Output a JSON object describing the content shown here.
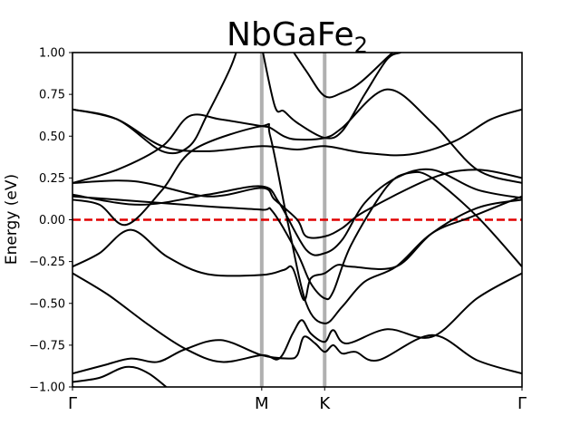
{
  "chart_data": {
    "type": "line",
    "title": "NbGaFe",
    "title_subscript": "2",
    "ylabel": "Energy (eV)",
    "xlabel": "",
    "x_range": [
      0,
      1
    ],
    "ylim": [
      -1.0,
      1.0
    ],
    "yticks": [
      -1.0,
      -0.75,
      -0.5,
      -0.25,
      0.0,
      0.25,
      0.5,
      0.75,
      1.0
    ],
    "ytick_labels": [
      "−1.00",
      "−0.75",
      "−0.50",
      "−0.25",
      "0.00",
      "0.25",
      "0.50",
      "0.75",
      "1.00"
    ],
    "high_symmetry_points": [
      {
        "label": "Γ",
        "x": 0.0
      },
      {
        "label": "M",
        "x": 0.421
      },
      {
        "label": "K",
        "x": 0.561
      },
      {
        "label": "Γ",
        "x": 1.0
      }
    ],
    "fermi_level": 0.0,
    "colors": {
      "bands": "#000000",
      "fermi": "#e00000",
      "kpath": "#b0b0b0"
    },
    "grid": false,
    "series": [
      {
        "points": [
          [
            0.0,
            -1.0
          ],
          [
            0.1,
            -1.05
          ]
        ]
      },
      {
        "points": [
          [
            0.0,
            -0.97
          ],
          [
            0.06,
            -0.945
          ],
          [
            0.12,
            -0.88
          ],
          [
            0.17,
            -0.92
          ],
          [
            0.23,
            -1.05
          ]
        ]
      },
      {
        "points": [
          [
            0.0,
            -0.92
          ],
          [
            0.07,
            -0.87
          ],
          [
            0.13,
            -0.83
          ],
          [
            0.19,
            -0.85
          ],
          [
            0.25,
            -0.775
          ],
          [
            0.33,
            -0.72
          ],
          [
            0.421,
            -0.81
          ],
          [
            0.48,
            -0.83
          ],
          [
            0.5,
            -0.81
          ],
          [
            0.515,
            -0.7
          ],
          [
            0.54,
            -0.74
          ],
          [
            0.561,
            -0.79
          ],
          [
            0.58,
            -0.75
          ],
          [
            0.6,
            -0.8
          ],
          [
            0.63,
            -0.79
          ],
          [
            0.68,
            -0.84
          ],
          [
            0.8,
            -0.69
          ],
          [
            0.9,
            -0.84
          ],
          [
            1.0,
            -0.92
          ]
        ]
      },
      {
        "points": [
          [
            0.0,
            -0.32
          ],
          [
            0.08,
            -0.45
          ],
          [
            0.17,
            -0.63
          ],
          [
            0.25,
            -0.77
          ],
          [
            0.33,
            -0.85
          ],
          [
            0.421,
            -0.81
          ],
          [
            0.46,
            -0.83
          ],
          [
            0.49,
            -0.68
          ],
          [
            0.51,
            -0.6
          ],
          [
            0.53,
            -0.68
          ],
          [
            0.561,
            -0.73
          ],
          [
            0.58,
            -0.66
          ],
          [
            0.61,
            -0.74
          ],
          [
            0.7,
            -0.655
          ],
          [
            0.8,
            -0.7
          ],
          [
            0.9,
            -0.47
          ],
          [
            1.0,
            -0.32
          ]
        ]
      },
      {
        "points": [
          [
            0.0,
            -0.28
          ],
          [
            0.06,
            -0.2
          ],
          [
            0.13,
            -0.06
          ],
          [
            0.21,
            -0.22
          ],
          [
            0.3,
            -0.325
          ],
          [
            0.421,
            -0.33
          ],
          [
            0.47,
            -0.3
          ],
          [
            0.49,
            -0.29
          ],
          [
            0.515,
            -0.48
          ],
          [
            0.53,
            -0.35
          ],
          [
            0.561,
            -0.32
          ],
          [
            0.59,
            -0.27
          ],
          [
            0.62,
            -0.28
          ],
          [
            0.72,
            -0.28
          ],
          [
            0.8,
            -0.08
          ],
          [
            0.9,
            0.07
          ],
          [
            1.0,
            0.12
          ]
        ]
      },
      {
        "points": [
          [
            0.0,
            0.12
          ],
          [
            0.06,
            0.09
          ],
          [
            0.12,
            -0.03
          ],
          [
            0.2,
            0.18
          ],
          [
            0.27,
            0.42
          ],
          [
            0.421,
            0.56
          ],
          [
            0.44,
            0.5
          ],
          [
            0.48,
            -0.03
          ],
          [
            0.52,
            -0.5
          ],
          [
            0.561,
            -0.62
          ],
          [
            0.6,
            -0.52
          ],
          [
            0.65,
            -0.37
          ],
          [
            0.72,
            -0.28
          ],
          [
            0.8,
            -0.08
          ],
          [
            0.89,
            0.02
          ],
          [
            1.0,
            0.14
          ]
        ]
      },
      {
        "points": [
          [
            0.0,
            0.14
          ],
          [
            0.15,
            0.11
          ],
          [
            0.3,
            0.08
          ],
          [
            0.421,
            0.06
          ],
          [
            0.445,
            0.05
          ],
          [
            0.5,
            -0.2
          ],
          [
            0.53,
            -0.38
          ],
          [
            0.561,
            -0.47
          ],
          [
            0.58,
            -0.43
          ],
          [
            0.62,
            -0.15
          ],
          [
            0.7,
            0.2
          ],
          [
            0.75,
            0.28
          ],
          [
            0.8,
            0.25
          ],
          [
            0.9,
            0.02
          ],
          [
            1.0,
            -0.28
          ]
        ]
      },
      {
        "points": [
          [
            0.0,
            0.15
          ],
          [
            0.15,
            0.09
          ],
          [
            0.3,
            0.15
          ],
          [
            0.421,
            0.2
          ],
          [
            0.46,
            0.1
          ],
          [
            0.52,
            -0.18
          ],
          [
            0.561,
            -0.2
          ],
          [
            0.6,
            -0.12
          ],
          [
            0.65,
            0.1
          ],
          [
            0.72,
            0.25
          ],
          [
            0.8,
            0.3
          ],
          [
            0.9,
            0.18
          ],
          [
            1.0,
            0.13
          ]
        ]
      },
      {
        "points": [
          [
            0.0,
            0.22
          ],
          [
            0.14,
            0.23
          ],
          [
            0.3,
            0.14
          ],
          [
            0.421,
            0.19
          ],
          [
            0.45,
            0.12
          ],
          [
            0.5,
            0.0
          ],
          [
            0.52,
            -0.1
          ],
          [
            0.561,
            -0.1
          ],
          [
            0.6,
            -0.05
          ],
          [
            0.65,
            0.05
          ],
          [
            0.8,
            0.25
          ],
          [
            0.9,
            0.3
          ],
          [
            1.0,
            0.25
          ]
        ]
      },
      {
        "points": [
          [
            0.0,
            0.22
          ],
          [
            0.1,
            0.3
          ],
          [
            0.2,
            0.44
          ],
          [
            0.26,
            0.62
          ],
          [
            0.33,
            0.6
          ],
          [
            0.421,
            0.56
          ],
          [
            0.44,
            0.55
          ],
          [
            0.47,
            0.5
          ],
          [
            0.5,
            0.48
          ],
          [
            0.561,
            0.49
          ],
          [
            0.6,
            0.55
          ],
          [
            0.7,
            0.78
          ],
          [
            0.8,
            0.58
          ],
          [
            0.9,
            0.3
          ],
          [
            1.0,
            0.22
          ]
        ]
      },
      {
        "points": [
          [
            0.0,
            0.66
          ],
          [
            0.1,
            0.6
          ],
          [
            0.2,
            0.44
          ],
          [
            0.3,
            0.41
          ],
          [
            0.421,
            0.44
          ],
          [
            0.5,
            0.42
          ],
          [
            0.561,
            0.44
          ],
          [
            0.65,
            0.4
          ],
          [
            0.75,
            0.39
          ],
          [
            0.85,
            0.47
          ],
          [
            0.93,
            0.6
          ],
          [
            1.0,
            0.66
          ]
        ]
      },
      {
        "points": [
          [
            0.0,
            0.66
          ],
          [
            0.1,
            0.6
          ],
          [
            0.2,
            0.41
          ],
          [
            0.26,
            0.44
          ],
          [
            0.3,
            0.63
          ],
          [
            0.35,
            0.9
          ],
          [
            0.37,
            1.05
          ]
        ]
      },
      {
        "points": [
          [
            0.48,
            1.05
          ],
          [
            0.52,
            0.89
          ],
          [
            0.561,
            0.74
          ],
          [
            0.6,
            0.76
          ],
          [
            0.64,
            0.82
          ],
          [
            0.7,
            0.97
          ],
          [
            0.72,
            1.02
          ]
        ]
      },
      {
        "points": [
          [
            0.42,
            1.05
          ],
          [
            0.45,
            0.68
          ],
          [
            0.47,
            0.65
          ],
          [
            0.5,
            0.58
          ],
          [
            0.561,
            0.49
          ],
          [
            0.6,
            0.53
          ],
          [
            0.65,
            0.75
          ],
          [
            0.7,
            0.96
          ],
          [
            0.73,
            1.0
          ]
        ]
      }
    ]
  }
}
